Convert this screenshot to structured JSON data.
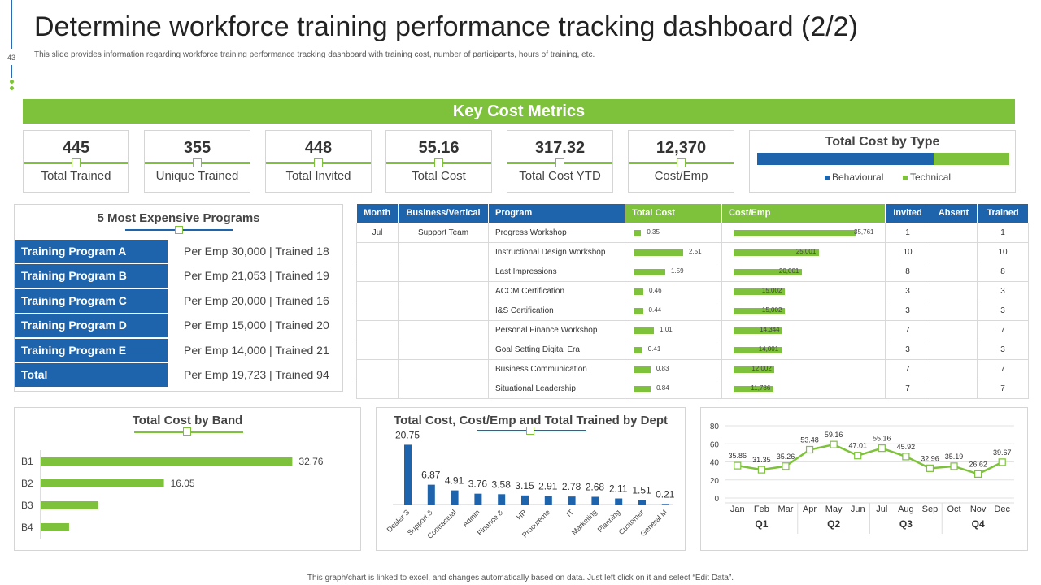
{
  "header": {
    "title": "Determine workforce training performance tracking dashboard (2/2)",
    "subtitle": "This slide provides information regarding workforce training performance tracking dashboard with training cost, number of participants, hours of training, etc.",
    "slide_number": "43"
  },
  "banner": {
    "label": "Key Cost Metrics"
  },
  "metrics": [
    {
      "value": "445",
      "label": "Total Trained"
    },
    {
      "value": "355",
      "label": "Unique Trained"
    },
    {
      "value": "448",
      "label": "Total Invited"
    },
    {
      "value": "55.16",
      "label": "Total Cost"
    },
    {
      "value": "317.32",
      "label": "Total Cost YTD"
    },
    {
      "value": "12,370",
      "label": "Cost/Emp"
    }
  ],
  "cost_by_type": {
    "title": "Total Cost by Type",
    "behavioural_share": 0.7,
    "legend": [
      "Behavioural",
      "Technical"
    ]
  },
  "expensive_programs": {
    "title": "5 Most Expensive Programs",
    "rows": [
      {
        "name": "Training Program A",
        "detail": "Per Emp 30,000 | Trained  18"
      },
      {
        "name": "Training Program B",
        "detail": "Per Emp 21,053 | Trained  19"
      },
      {
        "name": "Training Program C",
        "detail": "Per Emp 20,000 | Trained  16"
      },
      {
        "name": "Training Program D",
        "detail": "Per Emp 15,000 | Trained  20"
      },
      {
        "name": "Training Program E",
        "detail": "Per Emp 14,000 | Trained  21"
      },
      {
        "name": "Total",
        "detail": "Per Emp 19,723 | Trained  94"
      }
    ]
  },
  "program_table": {
    "headers": [
      "Month",
      "Business/Vertical",
      "Program",
      "Total Cost",
      "Cost/Emp",
      "Invited",
      "Absent",
      "Trained"
    ],
    "rows": [
      {
        "month": "Jul",
        "vertical": "Support Team",
        "program": "Progress Workshop",
        "total_cost": "0.35",
        "cost_emp": "35,761",
        "invited": "1",
        "absent": "",
        "trained": "1"
      },
      {
        "month": "",
        "vertical": "",
        "program": "Instructional Design Workshop",
        "total_cost": "2.51",
        "cost_emp": "25,001",
        "invited": "10",
        "absent": "",
        "trained": "10"
      },
      {
        "month": "",
        "vertical": "",
        "program": "Last Impressions",
        "total_cost": "1.59",
        "cost_emp": "20,001",
        "invited": "8",
        "absent": "",
        "trained": "8"
      },
      {
        "month": "",
        "vertical": "",
        "program": "ACCM Certification",
        "total_cost": "0.46",
        "cost_emp": "15,002",
        "invited": "3",
        "absent": "",
        "trained": "3"
      },
      {
        "month": "",
        "vertical": "",
        "program": "I&S Certification",
        "total_cost": "0.44",
        "cost_emp": "15,002",
        "invited": "3",
        "absent": "",
        "trained": "3"
      },
      {
        "month": "",
        "vertical": "",
        "program": "Personal Finance Workshop",
        "total_cost": "1.01",
        "cost_emp": "14,344",
        "invited": "7",
        "absent": "",
        "trained": "7"
      },
      {
        "month": "",
        "vertical": "",
        "program": "Goal Setting Digital Era",
        "total_cost": "0.41",
        "cost_emp": "14,001",
        "invited": "3",
        "absent": "",
        "trained": "3"
      },
      {
        "month": "",
        "vertical": "",
        "program": "Business Communication",
        "total_cost": "0.83",
        "cost_emp": "12,002",
        "invited": "7",
        "absent": "",
        "trained": "7"
      },
      {
        "month": "",
        "vertical": "",
        "program": "Situational Leadership",
        "total_cost": "0.84",
        "cost_emp": "11,786",
        "invited": "7",
        "absent": "",
        "trained": "7"
      }
    ]
  },
  "chart_data": [
    {
      "type": "bar",
      "orientation": "horizontal",
      "title": "Total Cost by Band",
      "categories": [
        "B1",
        "B2",
        "B3",
        "B4"
      ],
      "values": [
        32.76,
        16.05,
        7.5,
        3.7
      ],
      "data_labels": [
        "32.76",
        "16.05",
        "",
        ""
      ],
      "xlim": [
        0,
        36
      ]
    },
    {
      "type": "bar",
      "title": "Total Cost, Cost/Emp and Total Trained by Dept",
      "categories": [
        "Dealer S",
        "Support &",
        "Contractual",
        "Admin",
        "Finance &",
        "HR",
        "Procureme",
        "IT",
        "Marketing",
        "Planning",
        "Customer",
        "General M"
      ],
      "values": [
        20.75,
        6.87,
        4.91,
        3.76,
        3.58,
        3.15,
        2.91,
        2.78,
        2.68,
        2.11,
        1.51,
        0.21
      ],
      "ylim": [
        0,
        22
      ]
    },
    {
      "type": "line",
      "title": "",
      "x": [
        "Jan",
        "Feb",
        "Mar",
        "Apr",
        "May",
        "Jun",
        "Jul",
        "Aug",
        "Sep",
        "Oct",
        "Nov",
        "Dec"
      ],
      "quarters": [
        "Q1",
        "Q2",
        "Q3",
        "Q4"
      ],
      "values": [
        35.86,
        31.35,
        35.26,
        53.48,
        59.16,
        47.01,
        55.16,
        45.92,
        32.96,
        35.19,
        26.62,
        39.67
      ],
      "ylim": [
        0,
        80
      ],
      "yticks": [
        0,
        20,
        40,
        60,
        80
      ]
    }
  ],
  "footer": {
    "note": "This graph/chart is linked to excel, and changes automatically based on data. Just left click on it and select “Edit Data”."
  },
  "colors": {
    "green": "#7dc23a",
    "blue": "#1e64ad"
  }
}
